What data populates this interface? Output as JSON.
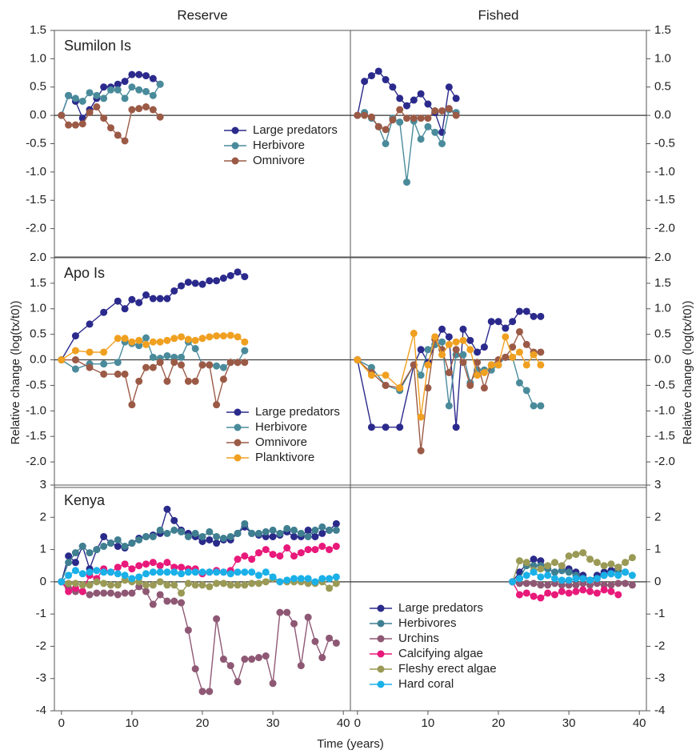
{
  "chart_data": [
    {
      "type": "line",
      "title": "Reserve",
      "annotation": "Sumilon Is",
      "xlim": [
        -1,
        41
      ],
      "ylim": [
        -2.5,
        1.5
      ],
      "yticks": [
        {
          "value": -2,
          "label": "-2.0"
        },
        {
          "value": -1.5,
          "label": "-1.5"
        },
        {
          "value": -1,
          "label": "-1.0"
        },
        {
          "value": -0.5,
          "label": "-0.5"
        },
        {
          "value": 0,
          "label": "0.0"
        },
        {
          "value": 0.5,
          "label": "0.5"
        },
        {
          "value": 1,
          "label": "1.0"
        },
        {
          "value": 1.5,
          "label": "1.5"
        }
      ],
      "yaxis_side": "left",
      "hline": 0,
      "legend": "center",
      "x": [
        0,
        1,
        2,
        3,
        4,
        5,
        6,
        7,
        8,
        9,
        10,
        11,
        12,
        13,
        14
      ],
      "series": [
        {
          "name": "Large predators",
          "color": "#2b2a8c",
          "values": [
            0,
            0.35,
            0.25,
            -0.05,
            0.1,
            0.3,
            0.5,
            0.5,
            0.55,
            0.6,
            0.72,
            0.72,
            0.7,
            0.65,
            0.55
          ]
        },
        {
          "name": "Herbivore",
          "color": "#4a8b9b",
          "values": [
            0,
            0.35,
            0.3,
            0.25,
            0.4,
            0.35,
            0.3,
            0.45,
            0.45,
            0.3,
            0.5,
            0.45,
            0.42,
            0.35,
            0.55
          ]
        },
        {
          "name": "Omnivore",
          "color": "#9b5a46",
          "values": [
            0,
            -0.17,
            -0.17,
            -0.15,
            0.05,
            0.15,
            -0.05,
            -0.22,
            -0.35,
            -0.45,
            0.1,
            0.12,
            0.15,
            0.1,
            -0.03
          ]
        }
      ]
    },
    {
      "type": "line",
      "title": "Fished",
      "xlim": [
        -1,
        41
      ],
      "ylim": [
        -2.5,
        1.5
      ],
      "yticks": [
        {
          "value": -2,
          "label": "-2.0"
        },
        {
          "value": -1.5,
          "label": "-1.5"
        },
        {
          "value": -1,
          "label": "-1.0"
        },
        {
          "value": -0.5,
          "label": "-0.5"
        },
        {
          "value": 0,
          "label": "0.0"
        },
        {
          "value": 0.5,
          "label": "0.5"
        },
        {
          "value": 1,
          "label": "1.0"
        },
        {
          "value": 1.5,
          "label": "1.5"
        }
      ],
      "yaxis_side": "right",
      "hline": 0,
      "x": [
        0,
        1,
        2,
        3,
        4,
        5,
        6,
        7,
        8,
        9,
        10,
        11,
        12,
        13,
        14
      ],
      "series": [
        {
          "color": "#2b2a8c",
          "values": [
            0,
            0.6,
            0.7,
            0.78,
            0.63,
            0.5,
            0.3,
            0.17,
            0.27,
            0.38,
            0.2,
            0.05,
            -0.3,
            0.5,
            0.3
          ]
        },
        {
          "color": "#4a8b9b",
          "values": [
            0,
            0.05,
            -0.05,
            -0.2,
            -0.5,
            -0.05,
            -0.12,
            -1.18,
            -0.1,
            -0.42,
            -0.2,
            -0.3,
            -0.5,
            0.1,
            0.05
          ]
        },
        {
          "color": "#9b5a46",
          "values": [
            0,
            0,
            -0.03,
            -0.2,
            -0.25,
            -0.08,
            0.1,
            -0.05,
            -0.05,
            -0.05,
            -0.05,
            0.08,
            0.08,
            0.12,
            0
          ]
        }
      ]
    },
    {
      "type": "line",
      "annotation": "Apo Is",
      "ylabel": "Relative change (log(tx/t0))",
      "xlim": [
        -1,
        41
      ],
      "ylim": [
        -2.5,
        2
      ],
      "yticks": [
        {
          "value": -2,
          "label": "-2.0"
        },
        {
          "value": -1.5,
          "label": "-1.5"
        },
        {
          "value": -1,
          "label": "-1.0"
        },
        {
          "value": -0.5,
          "label": "-0.5"
        },
        {
          "value": 0,
          "label": "0.0"
        },
        {
          "value": 0.5,
          "label": "0.5"
        },
        {
          "value": 1,
          "label": "1.0"
        },
        {
          "value": 1.5,
          "label": "1.5"
        },
        {
          "value": 2,
          "label": "2.0"
        }
      ],
      "yaxis_side": "left",
      "hline": 0,
      "legend": "lower center",
      "x": [
        0,
        2,
        4,
        6,
        8,
        9,
        10,
        11,
        12,
        13,
        14,
        15,
        16,
        17,
        18,
        19,
        20,
        21,
        22,
        23,
        24,
        25,
        26
      ],
      "series": [
        {
          "name": "Large predators",
          "color": "#2b2a8c",
          "values": [
            0,
            0.47,
            0.7,
            0.93,
            1.15,
            1.0,
            1.18,
            1.12,
            1.27,
            1.2,
            1.2,
            1.2,
            1.35,
            1.45,
            1.52,
            1.5,
            1.48,
            1.55,
            1.55,
            1.6,
            1.65,
            1.72,
            1.63
          ]
        },
        {
          "name": "Herbivore",
          "color": "#4a8b9b",
          "values": [
            0,
            -0.18,
            -0.08,
            -0.08,
            -0.05,
            0.35,
            0.32,
            0.28,
            0.43,
            0.05,
            0.03,
            0.08,
            0.05,
            0.05,
            0.35,
            0.22,
            -0.1,
            -0.1,
            -0.12,
            -0.15,
            -0.05,
            -0.05,
            0.18
          ]
        },
        {
          "name": "Omnivore",
          "color": "#9b5a46",
          "values": [
            0,
            0,
            -0.15,
            -0.28,
            -0.28,
            -0.28,
            -0.88,
            -0.42,
            -0.15,
            -0.15,
            -0.05,
            -0.42,
            -0.05,
            -0.1,
            -0.42,
            -0.42,
            -0.1,
            -0.1,
            -0.88,
            -0.38,
            -0.05,
            -0.05,
            -0.05
          ]
        },
        {
          "name": "Planktivore",
          "color": "#f0a020",
          "values": [
            0,
            0.18,
            0.15,
            0.15,
            0.42,
            0.42,
            0.35,
            0.38,
            0.3,
            0.35,
            0.35,
            0.38,
            0.42,
            0.45,
            0.4,
            0.38,
            0.42,
            0.45,
            0.47,
            0.47,
            0.48,
            0.45,
            0.35
          ]
        }
      ]
    },
    {
      "type": "line",
      "ylabel": "Relative change (log(tx/t0))",
      "xlim": [
        -1,
        41
      ],
      "ylim": [
        -2.5,
        2
      ],
      "yticks": [
        {
          "value": -2,
          "label": "-2.0"
        },
        {
          "value": -1.5,
          "label": "-1.5"
        },
        {
          "value": -1,
          "label": "-1.0"
        },
        {
          "value": -0.5,
          "label": "-0.5"
        },
        {
          "value": 0,
          "label": "0.0"
        },
        {
          "value": 0.5,
          "label": "0.5"
        },
        {
          "value": 1,
          "label": "1.0"
        },
        {
          "value": 1.5,
          "label": "1.5"
        },
        {
          "value": 2,
          "label": "2.0"
        }
      ],
      "yaxis_side": "right",
      "hline": 0,
      "x": [
        0,
        2,
        4,
        6,
        8,
        9,
        10,
        11,
        12,
        13,
        14,
        15,
        16,
        17,
        18,
        19,
        20,
        21,
        22,
        23,
        24,
        25,
        26
      ],
      "series": [
        {
          "color": "#2b2a8c",
          "values": [
            0,
            -1.32,
            -1.32,
            -1.32,
            -0.1,
            0.2,
            -0.05,
            0.3,
            0.6,
            0.45,
            -1.32,
            0.6,
            0.38,
            0.15,
            0.25,
            0.75,
            0.75,
            0.62,
            0.75,
            0.95,
            0.95,
            0.85,
            0.85
          ]
        },
        {
          "color": "#4a8b9b",
          "values": [
            0,
            -0.15,
            -0.5,
            -0.6,
            -0.1,
            -0.3,
            0.2,
            0.3,
            0.35,
            -0.9,
            0.1,
            0.1,
            -0.45,
            -0.2,
            -0.2,
            -0.2,
            -0.1,
            0.05,
            0.05,
            -0.45,
            -0.6,
            -0.9,
            -0.9
          ]
        },
        {
          "color": "#9b5a46",
          "values": [
            0,
            -0.25,
            -0.5,
            -0.55,
            -0.1,
            -1.78,
            -0.55,
            0.4,
            0.2,
            -0.25,
            0.2,
            -0.05,
            -0.5,
            -0.05,
            -0.55,
            -0.1,
            0,
            0.05,
            0.25,
            0.55,
            0.3,
            0.15,
            0.15
          ]
        },
        {
          "color": "#f0a020",
          "values": [
            0,
            -0.3,
            -0.3,
            -0.55,
            0.52,
            -1.12,
            -0.1,
            0.45,
            0.1,
            0.3,
            0.35,
            0.38,
            0.2,
            -0.3,
            -0.25,
            -0.1,
            -0.1,
            0.45,
            0.05,
            0.15,
            -0.1,
            0.1,
            -0.1
          ]
        }
      ]
    },
    {
      "type": "line",
      "annotation": "Kenya",
      "xlabel": "Time (years)",
      "xlim": [
        -1,
        41
      ],
      "ylim": [
        -4,
        3
      ],
      "xticks": [
        0,
        10,
        20,
        30,
        40
      ],
      "yticks": [
        -4,
        -3,
        -2,
        -1,
        0,
        1,
        2,
        3
      ],
      "yaxis_side": "left",
      "hline": 0,
      "x": [
        0,
        1,
        2,
        3,
        4,
        5,
        6,
        7,
        8,
        9,
        10,
        11,
        12,
        13,
        14,
        15,
        16,
        17,
        18,
        19,
        20,
        21,
        22,
        23,
        24,
        25,
        26,
        27,
        28,
        29,
        30,
        31,
        32,
        33,
        34,
        35,
        36,
        37,
        38,
        39
      ],
      "series": [
        {
          "color": "#2a2a8a",
          "values": [
            0,
            0.8,
            0.6,
            1.1,
            0.4,
            1.0,
            1.4,
            1.2,
            1.1,
            1.05,
            1.2,
            1.35,
            1.4,
            1.45,
            1.5,
            2.25,
            1.9,
            1.6,
            1.5,
            1.4,
            1.25,
            1.3,
            1.2,
            1.3,
            1.3,
            1.5,
            1.7,
            1.5,
            1.45,
            1.4,
            1.4,
            1.45,
            1.55,
            1.4,
            1.4,
            1.6,
            1.4,
            1.5,
            1.6,
            1.8
          ]
        },
        {
          "color": "#3f7f90",
          "values": [
            0,
            0.6,
            0.9,
            1.1,
            0.9,
            1.0,
            1.1,
            1.2,
            1.3,
            1.1,
            1.2,
            1.3,
            1.4,
            1.4,
            1.6,
            1.5,
            1.6,
            1.55,
            1.4,
            1.5,
            1.4,
            1.55,
            1.4,
            1.35,
            1.4,
            1.5,
            1.8,
            1.5,
            1.5,
            1.55,
            1.6,
            1.5,
            1.65,
            1.6,
            1.5,
            1.4,
            1.6,
            1.7,
            1.6,
            1.6
          ]
        },
        {
          "color": "#8e5874",
          "values": [
            0,
            -0.2,
            -0.3,
            -0.3,
            -0.4,
            -0.35,
            -0.35,
            -0.35,
            -0.4,
            -0.35,
            -0.35,
            -0.15,
            -0.3,
            -0.7,
            -0.4,
            -0.6,
            -0.6,
            -0.65,
            -1.5,
            -2.7,
            -3.4,
            -3.4,
            -1.15,
            -2.4,
            -2.6,
            -3.1,
            -2.4,
            -2.4,
            -2.35,
            -2.3,
            -3.15,
            -0.95,
            -0.95,
            -1.3,
            -2.6,
            -1.1,
            -1.85,
            -2.35,
            -1.75,
            -1.9
          ]
        },
        {
          "color": "#e8197a",
          "values": [
            0,
            -0.3,
            -0.2,
            -0.3,
            0.2,
            0.1,
            0.4,
            0.3,
            0.45,
            0.55,
            0.4,
            0.5,
            0.55,
            0.6,
            0.5,
            0.6,
            0.45,
            0.45,
            0.4,
            0.4,
            0.25,
            0.3,
            0.35,
            0.3,
            0.35,
            0.7,
            0.8,
            0.7,
            0.9,
            1.0,
            0.85,
            0.8,
            1.05,
            0.8,
            0.9,
            1.0,
            1.0,
            1.1,
            1.0,
            1.1
          ]
        },
        {
          "color": "#9a9a56",
          "values": [
            0,
            -0.05,
            -0.05,
            -0.1,
            -0.1,
            0,
            -0.05,
            -0.1,
            -0.1,
            0.05,
            0,
            0,
            -0.1,
            -0.1,
            0,
            -0.1,
            -0.1,
            -0.35,
            -0.05,
            -0.1,
            -0.1,
            -0.15,
            -0.05,
            -0.05,
            -0.1,
            -0.1,
            -0.1,
            -0.05,
            -0.05,
            0,
            0.1,
            0,
            0,
            0,
            0,
            -0.05,
            -0.05,
            0,
            -0.2,
            -0.05
          ]
        },
        {
          "color": "#1ab0e8",
          "values": [
            0,
            0.2,
            0.35,
            0.25,
            0.3,
            0.35,
            0.3,
            0.3,
            0.25,
            0.2,
            0.1,
            0.15,
            0.25,
            0.3,
            0.3,
            0.3,
            0.3,
            0.25,
            0.3,
            0.3,
            0.3,
            0.3,
            0.3,
            0.3,
            0.25,
            0.3,
            0.3,
            0.3,
            0.2,
            0.3,
            0.15,
            0,
            0.05,
            0.1,
            0.1,
            0.1,
            0,
            0.1,
            0.1,
            0.15
          ]
        }
      ]
    },
    {
      "type": "line",
      "xlim": [
        -1,
        41
      ],
      "ylim": [
        -4,
        3
      ],
      "xticks": [
        0,
        10,
        20,
        30,
        40
      ],
      "yticks": [
        -4,
        -3,
        -2,
        -1,
        0,
        1,
        2,
        3
      ],
      "yaxis_side": "right",
      "hline": 0,
      "legend": "lower left",
      "x": [
        22,
        23,
        24,
        25,
        26,
        27,
        28,
        29,
        30,
        31,
        32,
        33,
        34,
        35,
        36,
        37,
        38,
        39
      ],
      "series": [
        {
          "name": "Large predators",
          "color": "#2a2a8a",
          "values": [
            0,
            0.3,
            0.55,
            0.7,
            0.65,
            0.4,
            0.3,
            0.35,
            0.4,
            0.3,
            0.2,
            0.05,
            0.2,
            0.3,
            0.35,
            0.45,
            null,
            null
          ]
        },
        {
          "name": "Herbivores",
          "color": "#3f7f90",
          "values": [
            0,
            0.1,
            0.5,
            0.5,
            0.5,
            0.4,
            0.3,
            0.35,
            0.3,
            0.2,
            0.1,
            0.05,
            0.1,
            0.2,
            0.25,
            0.35,
            0.3,
            null
          ]
        },
        {
          "name": "Urchins",
          "color": "#8e5874",
          "values": [
            0,
            -0.05,
            -0.05,
            -0.05,
            -0.1,
            -0.1,
            -0.05,
            -0.1,
            -0.1,
            -0.1,
            -0.05,
            -0.1,
            -0.05,
            -0.1,
            -0.1,
            -0.05,
            -0.05,
            -0.1
          ]
        },
        {
          "name": "Calcifying algae",
          "color": "#e8197a",
          "values": [
            0,
            -0.4,
            -0.35,
            -0.45,
            -0.5,
            -0.35,
            -0.4,
            -0.3,
            -0.35,
            -0.3,
            -0.25,
            -0.3,
            -0.35,
            -0.25,
            -0.3,
            -0.4,
            null,
            null
          ]
        },
        {
          "name": "Fleshy erect algae",
          "color": "#9a9a56",
          "values": [
            0,
            0.65,
            0.6,
            0.35,
            0.4,
            0.5,
            0.6,
            0.5,
            0.8,
            0.85,
            0.9,
            0.7,
            0.6,
            0.5,
            0.55,
            0.45,
            0.6,
            0.75
          ]
        },
        {
          "name": "Hard coral",
          "color": "#1ab0e8",
          "values": [
            0,
            0.1,
            0.2,
            0.3,
            0.15,
            0.2,
            0.1,
            0.05,
            0.05,
            0.1,
            0.1,
            0.05,
            0.1,
            0.2,
            0.25,
            0.2,
            0.3,
            0.2
          ]
        }
      ]
    }
  ]
}
